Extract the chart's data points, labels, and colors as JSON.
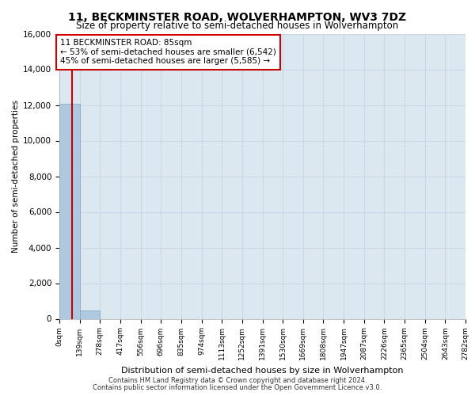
{
  "title_line1": "11, BECKMINSTER ROAD, WOLVERHAMPTON, WV3 7DZ",
  "title_line2": "Size of property relative to semi-detached houses in Wolverhampton",
  "xlabel": "Distribution of semi-detached houses by size in Wolverhampton",
  "ylabel": "Number of semi-detached properties",
  "footnote1": "Contains HM Land Registry data © Crown copyright and database right 2024.",
  "footnote2": "Contains public sector information licensed under the Open Government Licence v3.0.",
  "annotation_title": "11 BECKMINSTER ROAD: 85sqm",
  "annotation_line1": "← 53% of semi-detached houses are smaller (6,542)",
  "annotation_line2": "45% of semi-detached houses are larger (5,585) →",
  "property_size": 85,
  "bin_edges": [
    0,
    139,
    278,
    417,
    556,
    696,
    835,
    974,
    1113,
    1252,
    1391,
    1530,
    1669,
    1808,
    1947,
    2087,
    2226,
    2365,
    2504,
    2643,
    2782
  ],
  "bar_heights": [
    12050,
    450,
    0,
    0,
    0,
    0,
    0,
    0,
    0,
    0,
    0,
    0,
    0,
    0,
    0,
    0,
    0,
    0,
    0,
    0
  ],
  "bar_color": "#aec8e0",
  "bar_edge_color": "#7aaac8",
  "grid_color": "#c8d8e8",
  "background_color": "#dce8f0",
  "ylim": [
    0,
    16000
  ],
  "yticks": [
    0,
    2000,
    4000,
    6000,
    8000,
    10000,
    12000,
    14000,
    16000
  ],
  "red_line_color": "#cc0000",
  "red_box_color": "#cc0000",
  "tick_labels": [
    "0sqm",
    "139sqm",
    "278sqm",
    "417sqm",
    "556sqm",
    "696sqm",
    "835sqm",
    "974sqm",
    "1113sqm",
    "1252sqm",
    "1391sqm",
    "1530sqm",
    "1669sqm",
    "1808sqm",
    "1947sqm",
    "2087sqm",
    "2226sqm",
    "2365sqm",
    "2504sqm",
    "2643sqm",
    "2782sqm"
  ]
}
